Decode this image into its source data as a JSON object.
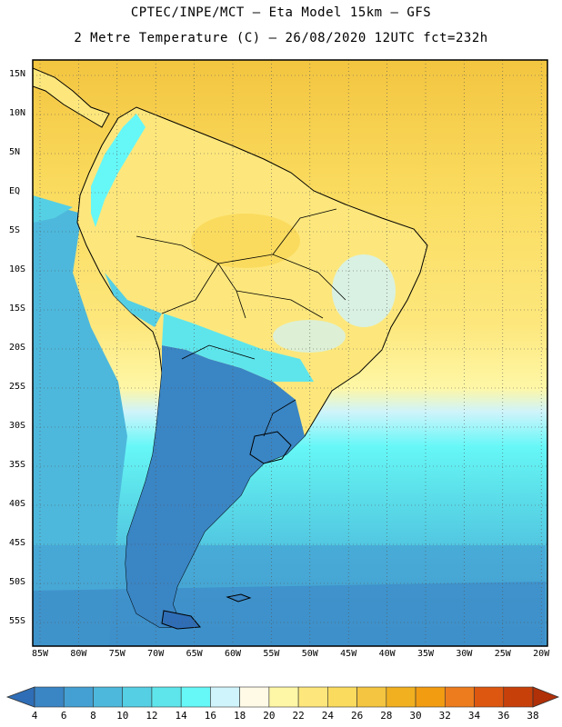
{
  "header": {
    "line1": "CPTEC/INPE/MCT –  Eta Model 15km – GFS",
    "line2": "2 Metre Temperature (C) – 26/08/2020 12UTC fct=232h"
  },
  "map": {
    "lat_ticks": [
      "15N",
      "10N",
      "5N",
      "EQ",
      "5S",
      "10S",
      "15S",
      "20S",
      "25S",
      "30S",
      "35S",
      "40S",
      "45S",
      "50S",
      "55S"
    ],
    "lon_ticks": [
      "85W",
      "80W",
      "75W",
      "70W",
      "65W",
      "60W",
      "55W",
      "50W",
      "45W",
      "40W",
      "35W",
      "30W",
      "25W",
      "20W"
    ],
    "grid": "dotted"
  },
  "colorbar": {
    "labels": [
      "4",
      "6",
      "8",
      "10",
      "12",
      "14",
      "16",
      "18",
      "20",
      "22",
      "24",
      "26",
      "28",
      "30",
      "32",
      "34",
      "36",
      "38"
    ],
    "colors": [
      "#2f6eb6",
      "#3a85c4",
      "#44a0d2",
      "#4db8dc",
      "#55cfe4",
      "#5ee5ec",
      "#66f7f7",
      "#cff4fb",
      "#fefae6",
      "#fef7a6",
      "#fde77c",
      "#fadb5e",
      "#f3c540",
      "#f0b020",
      "#f29c12",
      "#ec7c1e",
      "#dd5710",
      "#c7400a",
      "#b03008"
    ]
  },
  "colors": {
    "ocean_north": "#f3c540",
    "ocean_south": "#4db8dc",
    "land_cold": "#3a85c4",
    "land_warm": "#fde77c"
  }
}
